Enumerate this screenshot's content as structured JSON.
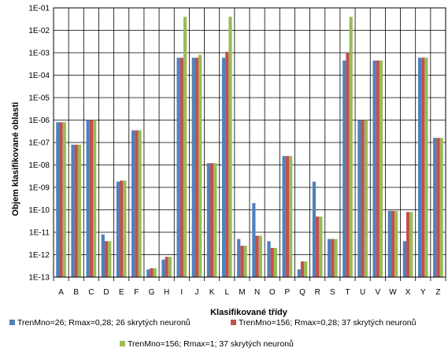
{
  "chart_data": {
    "type": "bar",
    "title": "",
    "xlabel": "Klasifikované  třídy",
    "ylabel": "Objem klasifikované oblasti",
    "yscale": "log",
    "ylim": [
      1e-13,
      0.1
    ],
    "ytick_labels": [
      "1E-13",
      "1E-12",
      "1E-11",
      "1E-10",
      "1E-09",
      "1E-08",
      "1E-07",
      "1E-06",
      "1E-05",
      "1E-04",
      "1E-03",
      "1E-02",
      "1E-01"
    ],
    "grid": true,
    "legend_position": "bottom",
    "categories": [
      "A",
      "B",
      "C",
      "D",
      "E",
      "F",
      "G",
      "H",
      "I",
      "J",
      "K",
      "L",
      "M",
      "N",
      "O",
      "P",
      "Q",
      "R",
      "S",
      "T",
      "U",
      "V",
      "W",
      "X",
      "Y",
      "Z"
    ],
    "series": [
      {
        "name": "TrenMno=26; Rmax=0,28; 26 skrytých neuronů",
        "color": "#4F81BD",
        "values": [
          8e-07,
          8e-08,
          1e-06,
          8e-12,
          1.8e-09,
          3.5e-07,
          2.2e-13,
          6e-13,
          0.0006,
          0.0006,
          1.2e-08,
          0.0006,
          5e-12,
          2e-10,
          4e-12,
          2.5e-08,
          2.2e-13,
          1.8e-09,
          5e-12,
          0.00045,
          1e-06,
          0.00045,
          9e-11,
          4e-12,
          0.0006,
          1.6e-07
        ]
      },
      {
        "name": "TrenMno=156; Rmax=0,28; 37 skrytých neuronů",
        "color": "#C0504D",
        "values": [
          8e-07,
          8e-08,
          1e-06,
          4e-12,
          2e-09,
          3.5e-07,
          2.5e-13,
          8e-13,
          0.0006,
          0.0006,
          1.2e-08,
          0.0011,
          2.5e-12,
          7e-12,
          2e-12,
          2.5e-08,
          5e-13,
          5e-11,
          5e-12,
          0.001,
          1e-06,
          0.00045,
          9e-11,
          8e-11,
          0.0006,
          1.6e-07
        ]
      },
      {
        "name": "TrenMno=156; Rmax=1; 37 skrytých neuronů",
        "color": "#9BBB59",
        "values": [
          8e-07,
          8e-08,
          1e-06,
          4e-12,
          2e-09,
          3.5e-07,
          2.5e-13,
          8e-13,
          0.04,
          0.0008,
          1.2e-08,
          0.04,
          2.5e-12,
          7e-12,
          2e-12,
          2.5e-08,
          5e-13,
          5e-11,
          5e-12,
          0.04,
          1e-06,
          0.00045,
          9e-11,
          8e-11,
          0.0006,
          1.6e-07
        ]
      }
    ]
  }
}
